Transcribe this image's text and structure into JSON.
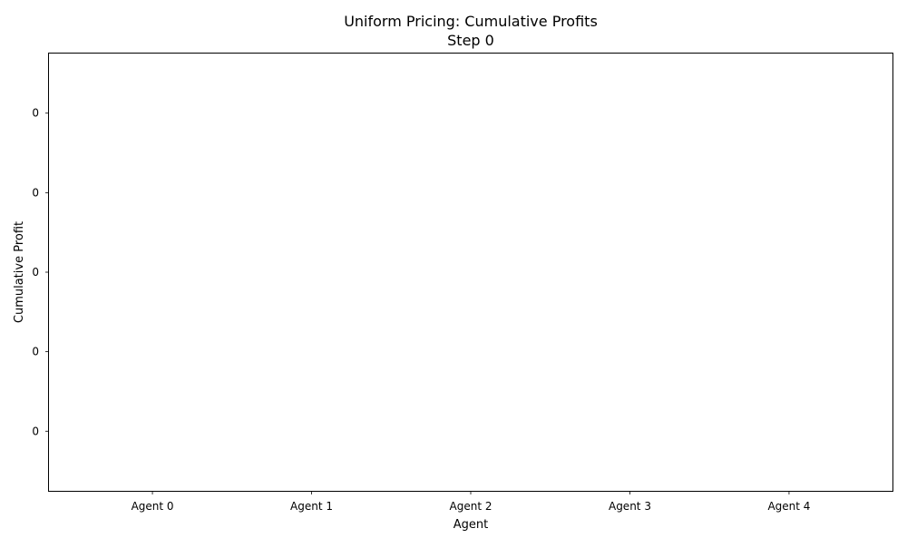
{
  "chart_data": {
    "type": "bar",
    "title_lines": [
      "Uniform Pricing: Cumulative Profits",
      "Step 0"
    ],
    "xlabel": "Agent",
    "ylabel": "Cumulative Profit",
    "categories": [
      "Agent 0",
      "Agent 1",
      "Agent 2",
      "Agent 3",
      "Agent 4"
    ],
    "values": [
      0,
      0,
      0,
      0,
      0
    ],
    "ytick_labels": [
      "0",
      "0",
      "0",
      "0",
      "0"
    ],
    "grid": false,
    "legend": "none"
  }
}
